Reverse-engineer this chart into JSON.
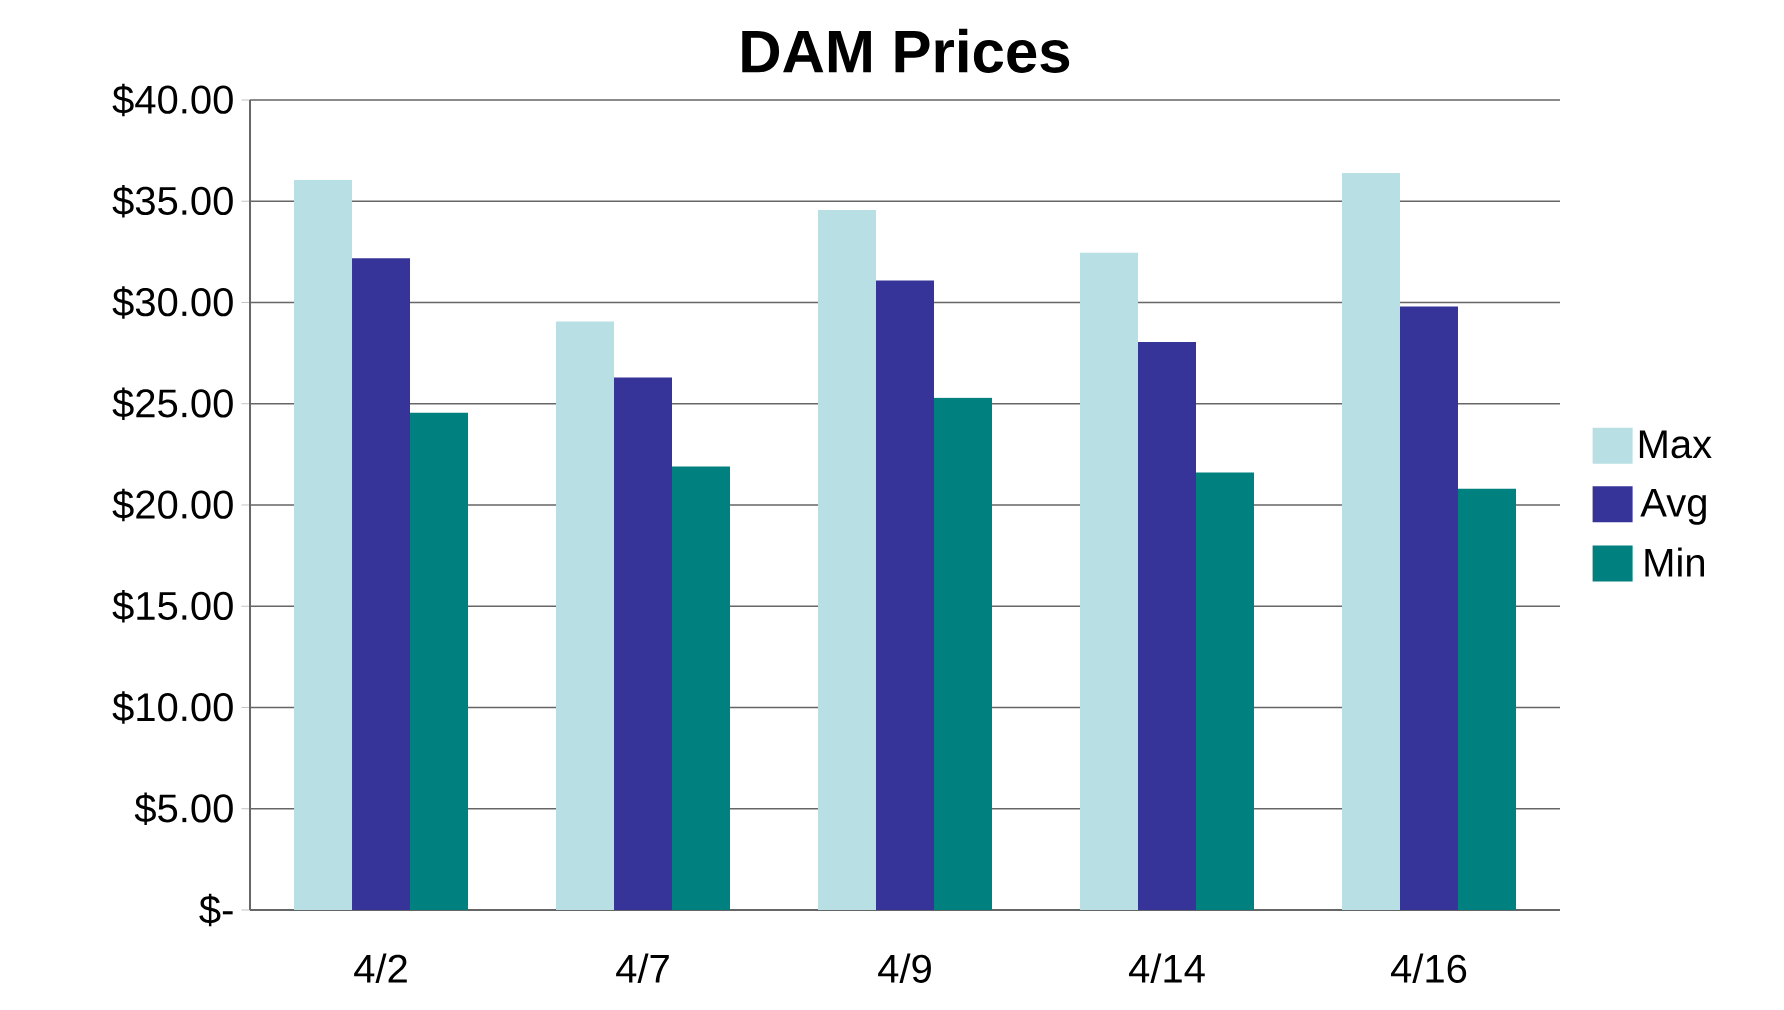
{
  "chart_data": {
    "type": "bar",
    "title": "DAM Prices",
    "categories": [
      "4/2",
      "4/7",
      "4/9",
      "4/14",
      "4/16"
    ],
    "series": [
      {
        "name": "Max",
        "color": "#b8dfe3",
        "values": [
          36.05,
          29.06,
          34.57,
          32.46,
          36.4
        ]
      },
      {
        "name": "Avg",
        "color": "#363499",
        "values": [
          32.18,
          26.3,
          31.08,
          28.05,
          29.8
        ]
      },
      {
        "name": "Min",
        "color": "#00807f",
        "values": [
          24.55,
          21.9,
          25.29,
          21.6,
          20.8
        ]
      }
    ],
    "ylim": [
      0,
      40
    ],
    "yticks": [
      {
        "value": 0,
        "label": "$-"
      },
      {
        "value": 5,
        "label": "$5.00"
      },
      {
        "value": 10,
        "label": "$10.00"
      },
      {
        "value": 15,
        "label": "$15.00"
      },
      {
        "value": 20,
        "label": "$20.00"
      },
      {
        "value": 25,
        "label": "$25.00"
      },
      {
        "value": 30,
        "label": "$30.00"
      },
      {
        "value": 35,
        "label": "$35.00"
      },
      {
        "value": 40,
        "label": "$40.00"
      }
    ],
    "grid": "y",
    "legend": "right"
  }
}
